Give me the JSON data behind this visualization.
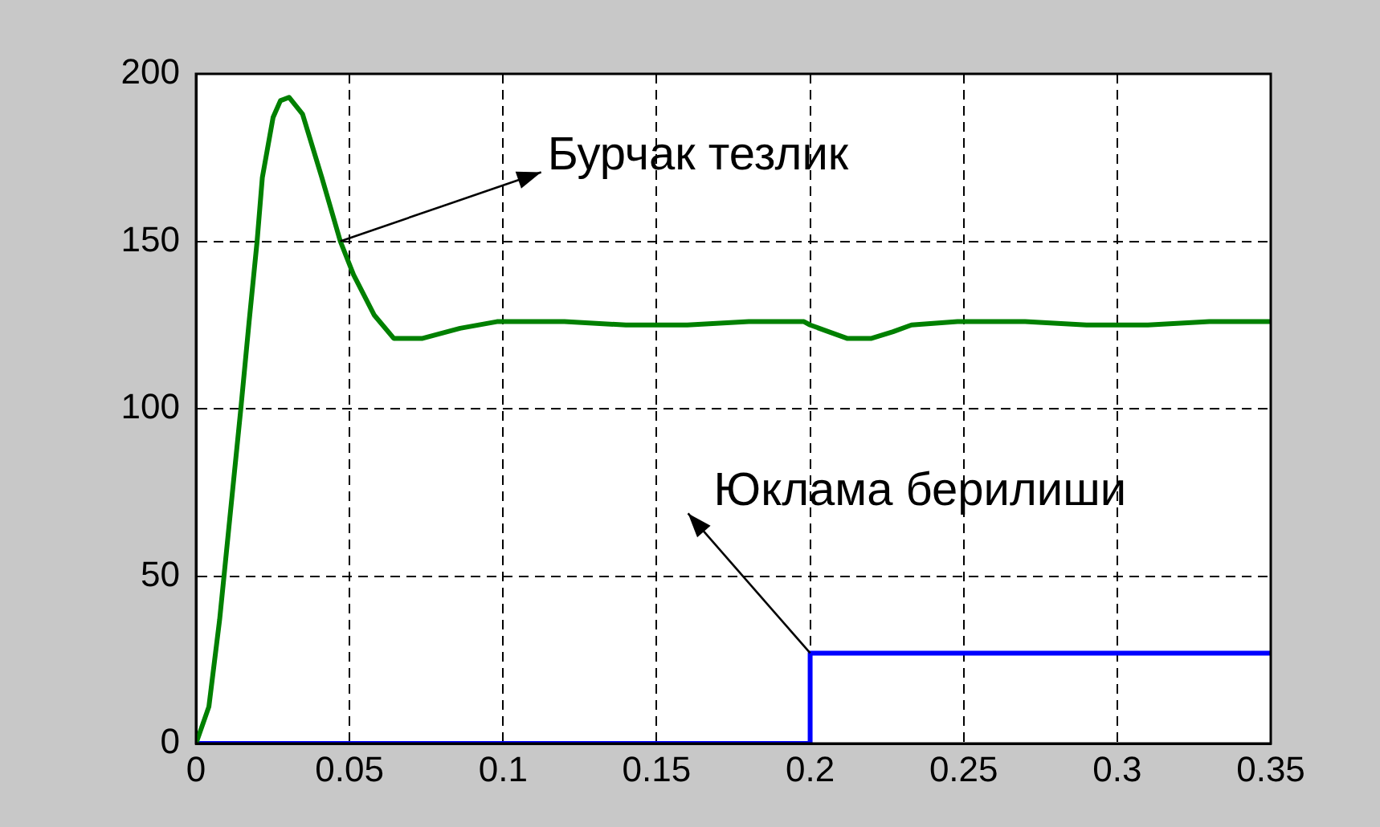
{
  "chart_data": {
    "type": "line",
    "series": [
      {
        "color": "#008000",
        "x": [
          0,
          0.0042,
          0.0077,
          0.0112,
          0.0146,
          0.0173,
          0.0199,
          0.0216,
          0.0251,
          0.0275,
          0.0303,
          0.0347,
          0.041,
          0.047,
          0.0513,
          0.058,
          0.0644,
          0.0738,
          0.086,
          0.098,
          0.12,
          0.14,
          0.16,
          0.18,
          0.198,
          0.2,
          0.206,
          0.212,
          0.22,
          0.227,
          0.233,
          0.248,
          0.27,
          0.29,
          0.31,
          0.33,
          0.35
        ],
        "values": [
          0,
          11,
          37,
          69,
          100,
          126,
          150,
          169,
          187,
          192,
          193,
          188,
          169,
          150,
          140,
          128,
          121,
          121,
          124,
          126,
          126,
          125,
          125,
          126,
          126,
          125,
          123,
          121,
          121,
          123,
          125,
          126,
          126,
          125,
          125,
          126,
          126
        ]
      },
      {
        "color": "#0000ff",
        "x": [
          0,
          0.2,
          0.2,
          0.35
        ],
        "values": [
          0,
          0,
          27,
          27
        ]
      }
    ],
    "xlim": [
      0,
      0.35
    ],
    "xticks": [
      0,
      0.05,
      0.1,
      0.15,
      0.2,
      0.25,
      0.3,
      0.35
    ],
    "ylim": [
      0,
      200
    ],
    "yticks": [
      0,
      50,
      100,
      150,
      200
    ],
    "grid": true,
    "annotations": [
      {
        "text": "Бурчак тезлик",
        "x": 0.047,
        "y": 150
      },
      {
        "text": "Юклама берилиши",
        "x": 0.2,
        "y": 27
      }
    ]
  }
}
